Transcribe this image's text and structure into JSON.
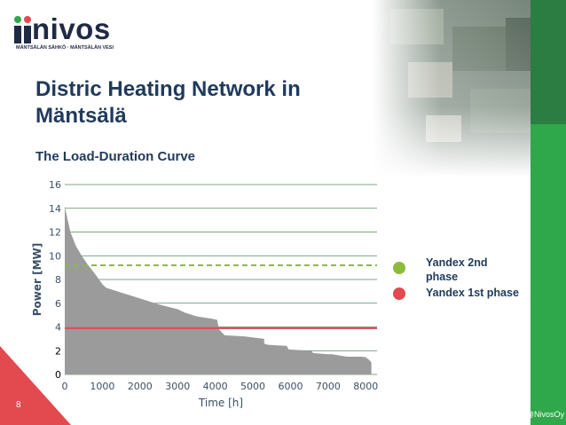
{
  "logo": {
    "name": "nivos",
    "tagline": "MÄNTSÄLÄN SÄHKÖ · MÄNTSÄLÄN VESI"
  },
  "slide": {
    "title": "Distric Heating Network in Mäntsälä",
    "subtitle": "The Load-Duration Curve",
    "page_number": "8",
    "handle": "@NivosOy"
  },
  "colors": {
    "title": "#1f3a5c",
    "accent_green": "#2ea84a",
    "accent_red": "#e24a50",
    "curve_fill": "#9b9b9b",
    "grid": "#4f8a5c",
    "line_2nd_phase": "#8dbb3c",
    "line_1st_phase": "#d9535c"
  },
  "legend": [
    {
      "label": "Yandex 2nd phase",
      "color": "#8dbb3c"
    },
    {
      "label": "Yandex 1st phase",
      "color": "#e24a50"
    }
  ],
  "chart_data": {
    "type": "area",
    "title": "",
    "xlabel": "Time [h]",
    "ylabel": "Power [MW]",
    "xlim": [
      0,
      8300
    ],
    "ylim": [
      0,
      16
    ],
    "x_ticks": [
      0,
      1000,
      2000,
      3000,
      4000,
      5000,
      6000,
      7000,
      8000
    ],
    "y_ticks": [
      0,
      2,
      4,
      6,
      8,
      10,
      12,
      14,
      16
    ],
    "grid": "horizontal",
    "legend_position": "right",
    "series": [
      {
        "type": "area",
        "x": [
          0,
          50,
          150,
          300,
          450,
          600,
          800,
          1000,
          1100,
          1500,
          2000,
          2500,
          3000,
          3200,
          3500,
          3800,
          3900,
          4050,
          4100,
          4250,
          4800,
          5300,
          5300,
          5400,
          5900,
          5950,
          6500,
          6550,
          6600,
          7000,
          7100,
          7300,
          7500,
          7900,
          8000,
          8100,
          8150
        ],
        "y": [
          14.2,
          13.4,
          12.0,
          10.8,
          10.0,
          9.3,
          8.5,
          7.6,
          7.3,
          6.9,
          6.4,
          5.9,
          5.5,
          5.2,
          4.9,
          4.75,
          4.7,
          4.6,
          3.8,
          3.3,
          3.2,
          3.0,
          2.6,
          2.5,
          2.4,
          2.1,
          2.0,
          2.0,
          1.8,
          1.7,
          1.7,
          1.6,
          1.5,
          1.5,
          1.45,
          1.2,
          1.0
        ]
      },
      {
        "name": "Yandex 2nd phase",
        "type": "line",
        "style": "dashed",
        "y": 9.2
      },
      {
        "name": "Yandex 1st phase",
        "type": "line",
        "style": "solid",
        "y": 3.9
      }
    ]
  }
}
